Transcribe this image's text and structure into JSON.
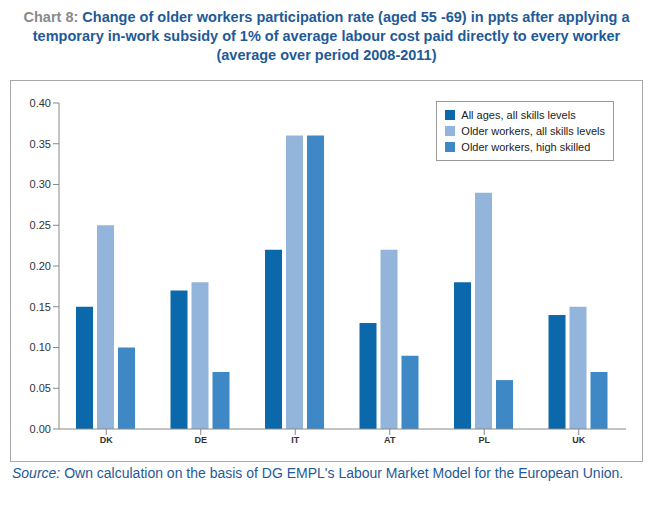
{
  "chart_data": {
    "type": "bar",
    "title": "Chart 8: Change of older workers participation rate (aged 55 -69) in ppts after applying a temporary in-work subsidy of 1% of average labour cost paid directly to every worker (average over period 2008-2011)",
    "source": "Source: Own calculation on the basis of DG EMPL's Labour Market Model for the European Union.",
    "categories": [
      "DK",
      "DE",
      "IT",
      "AT",
      "PL",
      "UK"
    ],
    "series": [
      {
        "name": "All ages, all skills levels",
        "color": "#0a68ab",
        "values": [
          0.15,
          0.17,
          0.22,
          0.13,
          0.18,
          0.14
        ]
      },
      {
        "name": "Older workers, all skills levels",
        "color": "#93b4db",
        "values": [
          0.25,
          0.18,
          0.36,
          0.22,
          0.29,
          0.15
        ]
      },
      {
        "name": "Older workers, high skilled",
        "color": "#3e88c5",
        "values": [
          0.1,
          0.07,
          0.36,
          0.09,
          0.06,
          0.07
        ]
      }
    ],
    "ylim": [
      0,
      0.4
    ],
    "yticks": [
      {
        "value": 0,
        "label": "0.00"
      },
      {
        "value": 0.05,
        "label": "0.05"
      },
      {
        "value": 0.1,
        "label": "0.10"
      },
      {
        "value": 0.15,
        "label": "0.15"
      },
      {
        "value": 0.2,
        "label": "0.20"
      },
      {
        "value": 0.25,
        "label": "0.25"
      },
      {
        "value": 0.3,
        "label": "0.30"
      },
      {
        "value": 0.35,
        "label": "0.35"
      },
      {
        "value": 0.4,
        "label": "0.40"
      }
    ],
    "grid": false,
    "legend": "top-right"
  }
}
